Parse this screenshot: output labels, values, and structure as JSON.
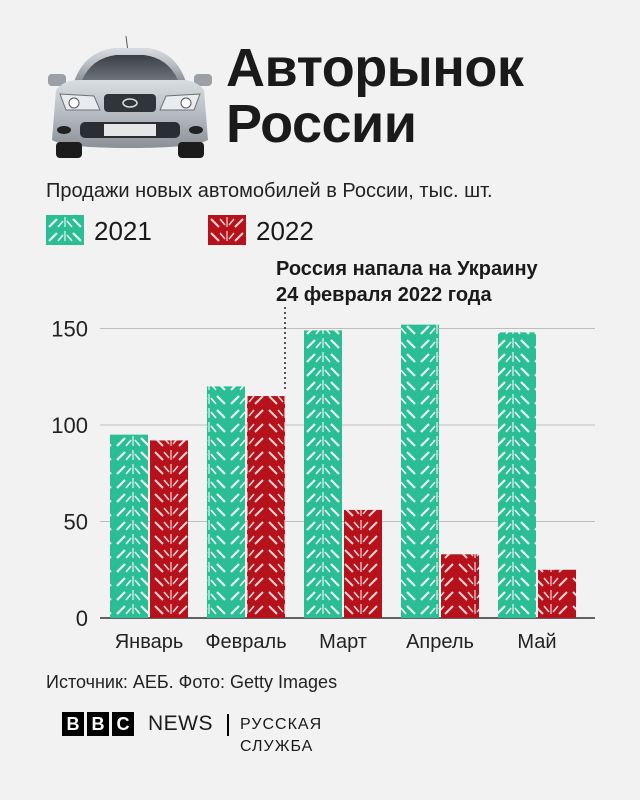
{
  "title_line1": "Авторынок",
  "title_line2": "России",
  "footer": {
    "source": "Источник: АЕБ. Фото: Getty Images",
    "bbc_letters": [
      "B",
      "B",
      "C"
    ],
    "news": "NEWS",
    "service": "РУССКАЯ СЛУЖБА"
  },
  "colors": {
    "series_2021": "#2bbd94",
    "series_2022": "#b5121b",
    "background": "#f2f2f2",
    "grid": "#bdbdbd"
  },
  "chart_data": {
    "type": "bar",
    "title": "Продажи новых автомобилей в России, тыс. шт.",
    "categories": [
      "Январь",
      "Февраль",
      "Март",
      "Апрель",
      "Май"
    ],
    "series": [
      {
        "name": "2021",
        "values": [
          95,
          120,
          149,
          152,
          148
        ]
      },
      {
        "name": "2022",
        "values": [
          92,
          115,
          56,
          33,
          25
        ]
      }
    ],
    "yticks": [
      0,
      50,
      100,
      150
    ],
    "ylim": [
      0,
      155
    ],
    "grid": true,
    "legend_position": "top-left",
    "annotation": {
      "category": "Февраль",
      "line1": "Россия напала на Украину",
      "line2": "24 февраля 2022 года"
    }
  }
}
